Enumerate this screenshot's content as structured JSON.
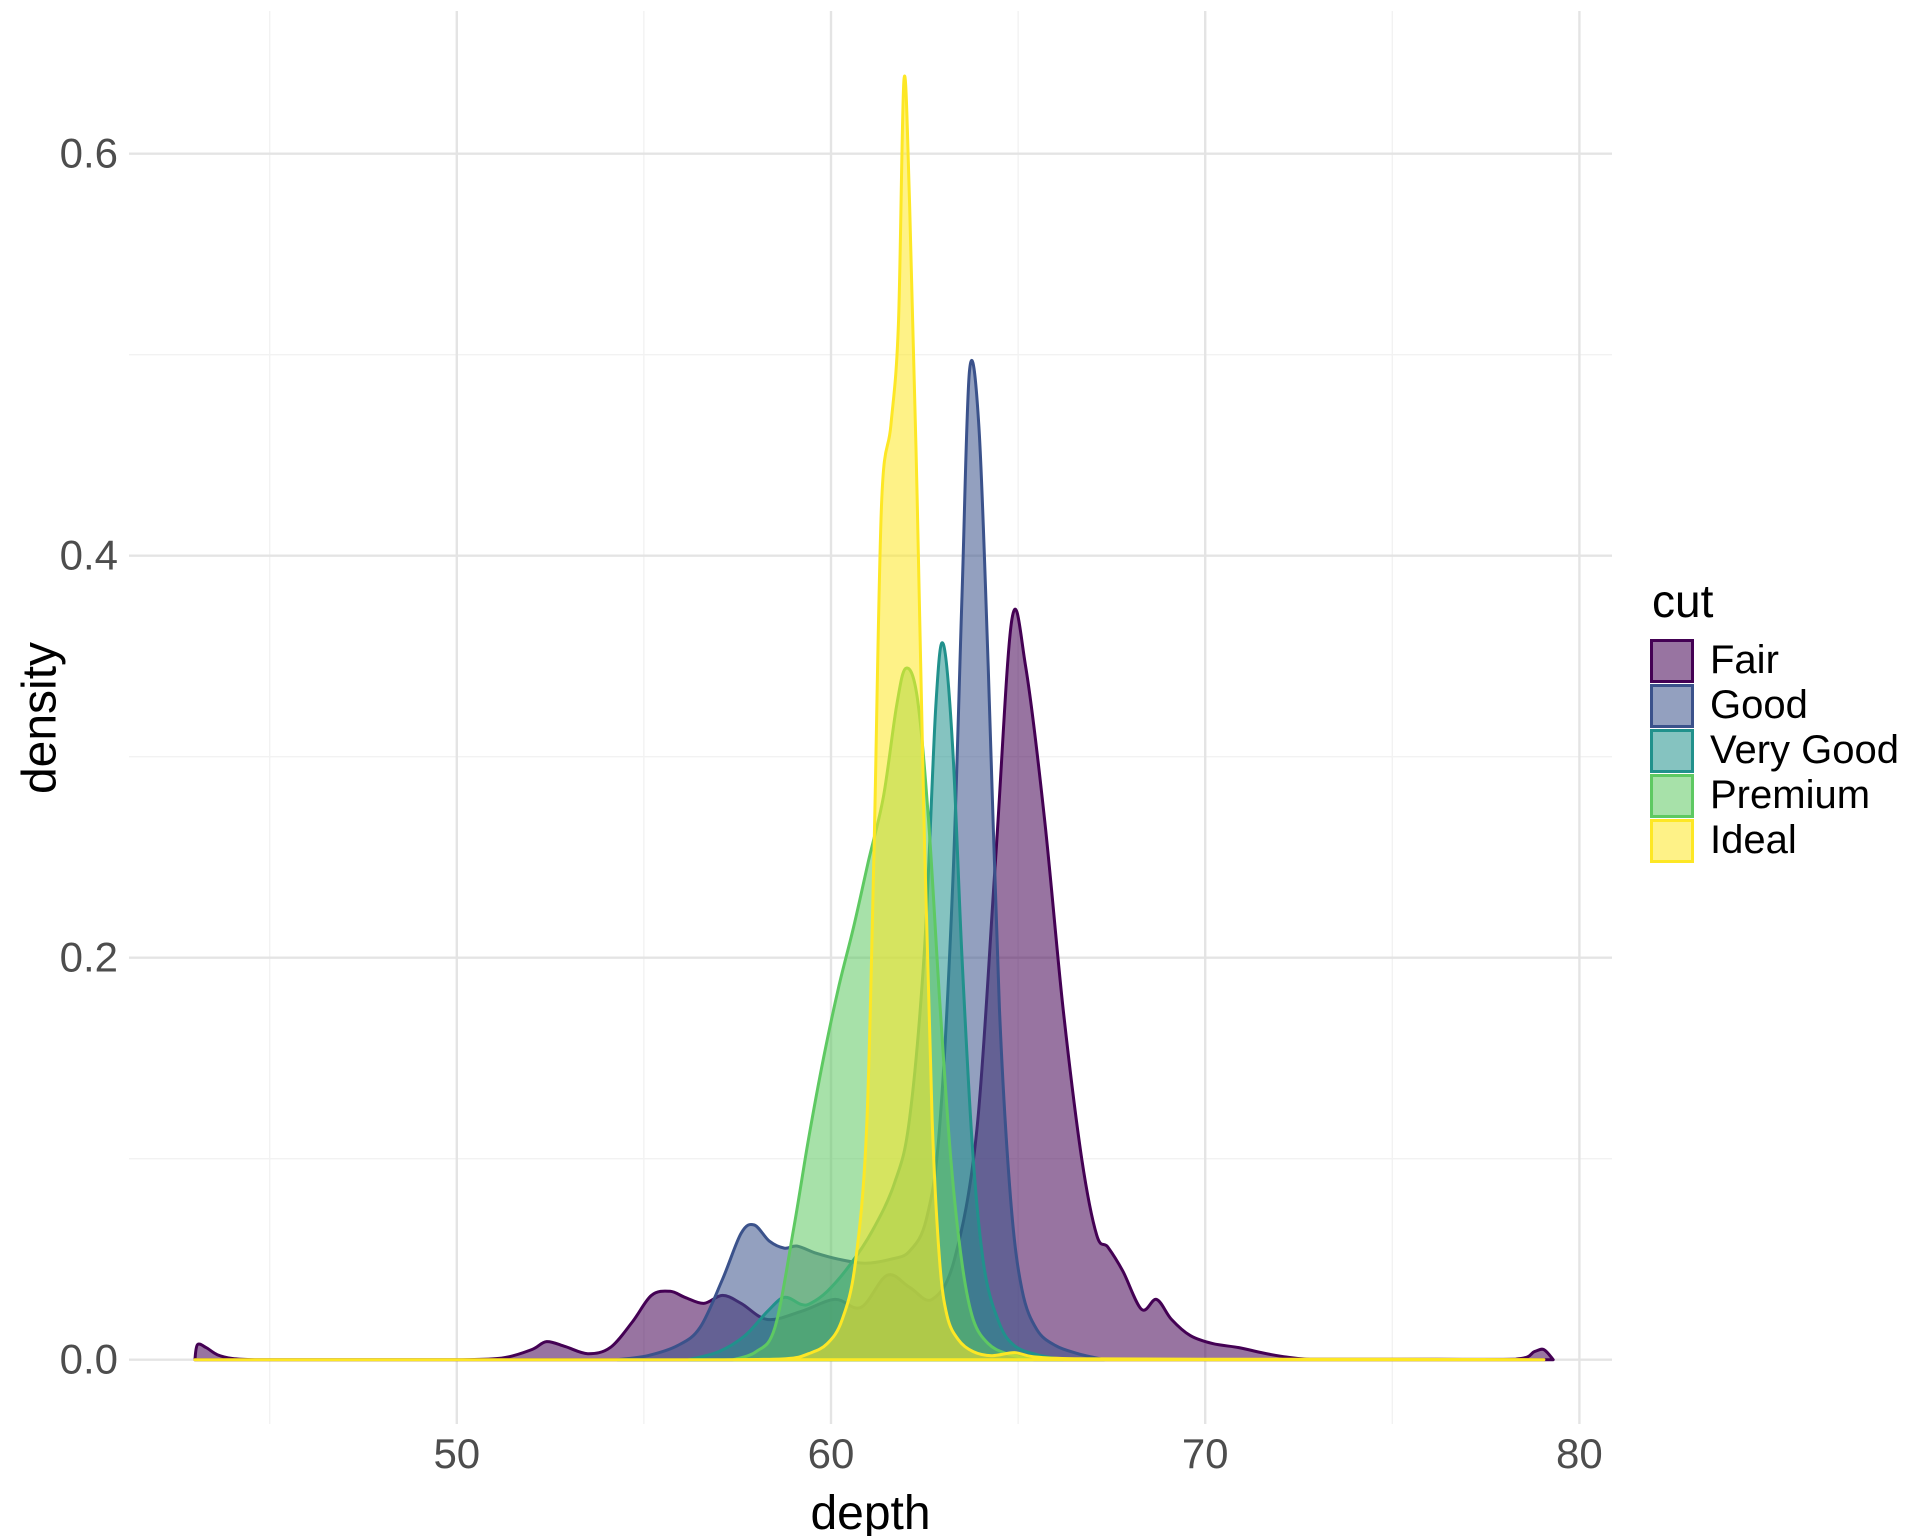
{
  "figure": {
    "background": "#FFFFFF",
    "tick_color": "#4D4D4D",
    "grid_major_color": "#E4E4E4",
    "grid_minor_color": "#F2F2F2"
  },
  "chart_data": {
    "type": "area",
    "kind": "overlapping-density",
    "title": "",
    "xlabel": "depth",
    "ylabel": "density",
    "legend_title": "cut",
    "legend_position": "right",
    "grid": "major+minor",
    "xlim": [
      41.24,
      80.87
    ],
    "ylim": [
      -0.032,
      0.671
    ],
    "x_ticks": [
      {
        "v": 50,
        "label": "50"
      },
      {
        "v": 60,
        "label": "60"
      },
      {
        "v": 70,
        "label": "70"
      },
      {
        "v": 80,
        "label": "80"
      }
    ],
    "x_minor": [
      45,
      55,
      65,
      75
    ],
    "y_ticks": [
      {
        "v": 0,
        "label": "0.0"
      },
      {
        "v": 0.2,
        "label": "0.2"
      },
      {
        "v": 0.4,
        "label": "0.4"
      },
      {
        "v": 0.6,
        "label": "0.6"
      }
    ],
    "y_minor": [
      0.1,
      0.3,
      0.5
    ],
    "fill_opacity": 0.55,
    "series": [
      {
        "name": "Fair",
        "color": "#440154",
        "points": [
          [
            43.0,
            0
          ],
          [
            43.07,
            0.0075
          ],
          [
            43.3,
            0.006
          ],
          [
            43.6,
            0.0025
          ],
          [
            44.0,
            0.0006
          ],
          [
            44.6,
            0
          ],
          [
            46,
            0
          ],
          [
            48,
            0
          ],
          [
            50,
            0
          ],
          [
            51.2,
            0.0008
          ],
          [
            52.0,
            0.005
          ],
          [
            52.4,
            0.009
          ],
          [
            52.9,
            0.0065
          ],
          [
            53.5,
            0.003
          ],
          [
            54.1,
            0.006
          ],
          [
            54.7,
            0.019
          ],
          [
            55.2,
            0.032
          ],
          [
            55.7,
            0.034
          ],
          [
            56.1,
            0.031
          ],
          [
            56.6,
            0.028
          ],
          [
            57.1,
            0.032
          ],
          [
            57.6,
            0.028
          ],
          [
            58.3,
            0.02
          ],
          [
            59.2,
            0.024
          ],
          [
            60.1,
            0.03
          ],
          [
            60.8,
            0.026
          ],
          [
            61.5,
            0.042
          ],
          [
            62.1,
            0.036
          ],
          [
            62.7,
            0.03
          ],
          [
            63.3,
            0.05
          ],
          [
            63.9,
            0.115
          ],
          [
            64.4,
            0.25
          ],
          [
            64.83,
            0.368
          ],
          [
            65.2,
            0.345
          ],
          [
            65.7,
            0.27
          ],
          [
            66.2,
            0.175
          ],
          [
            66.7,
            0.1
          ],
          [
            67.1,
            0.062
          ],
          [
            67.4,
            0.056
          ],
          [
            67.8,
            0.044
          ],
          [
            68.3,
            0.025
          ],
          [
            68.7,
            0.03
          ],
          [
            69.1,
            0.02
          ],
          [
            69.6,
            0.012
          ],
          [
            70.2,
            0.008
          ],
          [
            70.9,
            0.006
          ],
          [
            71.5,
            0.0035
          ],
          [
            72.1,
            0.0015
          ],
          [
            72.7,
            0.0003
          ],
          [
            74,
            0.0002
          ],
          [
            76,
            0.0002
          ],
          [
            78.3,
            0.0003
          ],
          [
            78.8,
            0.004
          ],
          [
            79.05,
            0.005
          ],
          [
            79.3,
            0
          ]
        ]
      },
      {
        "name": "Good",
        "color": "#3B528B",
        "points": [
          [
            54.3,
            0
          ],
          [
            55.1,
            0.002
          ],
          [
            55.9,
            0.007
          ],
          [
            56.5,
            0.016
          ],
          [
            57.1,
            0.04
          ],
          [
            57.6,
            0.063
          ],
          [
            57.95,
            0.067
          ],
          [
            58.35,
            0.059
          ],
          [
            58.75,
            0.0555
          ],
          [
            59.1,
            0.0565
          ],
          [
            59.6,
            0.053
          ],
          [
            60.2,
            0.05
          ],
          [
            60.9,
            0.048
          ],
          [
            61.6,
            0.05
          ],
          [
            62.1,
            0.054
          ],
          [
            62.55,
            0.07
          ],
          [
            62.9,
            0.115
          ],
          [
            63.25,
            0.235
          ],
          [
            63.5,
            0.38
          ],
          [
            63.7,
            0.492
          ],
          [
            63.95,
            0.465
          ],
          [
            64.2,
            0.345
          ],
          [
            64.5,
            0.175
          ],
          [
            64.8,
            0.08
          ],
          [
            65.1,
            0.035
          ],
          [
            65.5,
            0.015
          ],
          [
            66.0,
            0.007
          ],
          [
            66.6,
            0.003
          ],
          [
            67.3,
            0
          ]
        ]
      },
      {
        "name": "Very Good",
        "color": "#21918C",
        "points": [
          [
            56.2,
            0
          ],
          [
            57.0,
            0.004
          ],
          [
            57.7,
            0.012
          ],
          [
            58.3,
            0.024
          ],
          [
            58.75,
            0.031
          ],
          [
            59.2,
            0.0275
          ],
          [
            59.45,
            0.028
          ],
          [
            59.9,
            0.034
          ],
          [
            60.5,
            0.047
          ],
          [
            61.1,
            0.064
          ],
          [
            61.7,
            0.088
          ],
          [
            62.1,
            0.12
          ],
          [
            62.5,
            0.205
          ],
          [
            62.8,
            0.325
          ],
          [
            63.0,
            0.356
          ],
          [
            63.25,
            0.305
          ],
          [
            63.5,
            0.2
          ],
          [
            63.8,
            0.1
          ],
          [
            64.1,
            0.045
          ],
          [
            64.5,
            0.018
          ],
          [
            64.9,
            0.007
          ],
          [
            65.5,
            0.0025
          ],
          [
            66.2,
            0
          ]
        ]
      },
      {
        "name": "Premium",
        "color": "#5EC962",
        "points": [
          [
            57.4,
            0
          ],
          [
            58.0,
            0.004
          ],
          [
            58.5,
            0.016
          ],
          [
            59.0,
            0.065
          ],
          [
            59.4,
            0.11
          ],
          [
            59.8,
            0.15
          ],
          [
            60.2,
            0.185
          ],
          [
            60.6,
            0.215
          ],
          [
            61.0,
            0.248
          ],
          [
            61.4,
            0.28
          ],
          [
            61.75,
            0.325
          ],
          [
            62.0,
            0.344
          ],
          [
            62.3,
            0.33
          ],
          [
            62.6,
            0.27
          ],
          [
            62.9,
            0.18
          ],
          [
            63.2,
            0.1
          ],
          [
            63.5,
            0.048
          ],
          [
            63.8,
            0.02
          ],
          [
            64.2,
            0.008
          ],
          [
            64.7,
            0.003
          ],
          [
            65.4,
            0
          ]
        ]
      },
      {
        "name": "Ideal",
        "color": "#FDE725",
        "points": [
          [
            43.0,
            0
          ],
          [
            48,
            0
          ],
          [
            53,
            0
          ],
          [
            57,
            0
          ],
          [
            58.8,
            0.0005
          ],
          [
            59.4,
            0.003
          ],
          [
            59.9,
            0.008
          ],
          [
            60.3,
            0.02
          ],
          [
            60.65,
            0.048
          ],
          [
            60.95,
            0.115
          ],
          [
            61.15,
            0.255
          ],
          [
            61.35,
            0.425
          ],
          [
            61.6,
            0.465
          ],
          [
            61.8,
            0.515
          ],
          [
            61.95,
            0.637
          ],
          [
            62.1,
            0.575
          ],
          [
            62.3,
            0.43
          ],
          [
            62.5,
            0.255
          ],
          [
            62.7,
            0.12
          ],
          [
            62.9,
            0.05
          ],
          [
            63.1,
            0.022
          ],
          [
            63.4,
            0.01
          ],
          [
            63.8,
            0.004
          ],
          [
            64.3,
            0.002
          ],
          [
            64.9,
            0.0035
          ],
          [
            65.4,
            0.0015
          ],
          [
            66.5,
            0.0005
          ],
          [
            70,
            0.0002
          ],
          [
            75,
            0.0002
          ],
          [
            79.05,
            0
          ]
        ]
      }
    ]
  }
}
